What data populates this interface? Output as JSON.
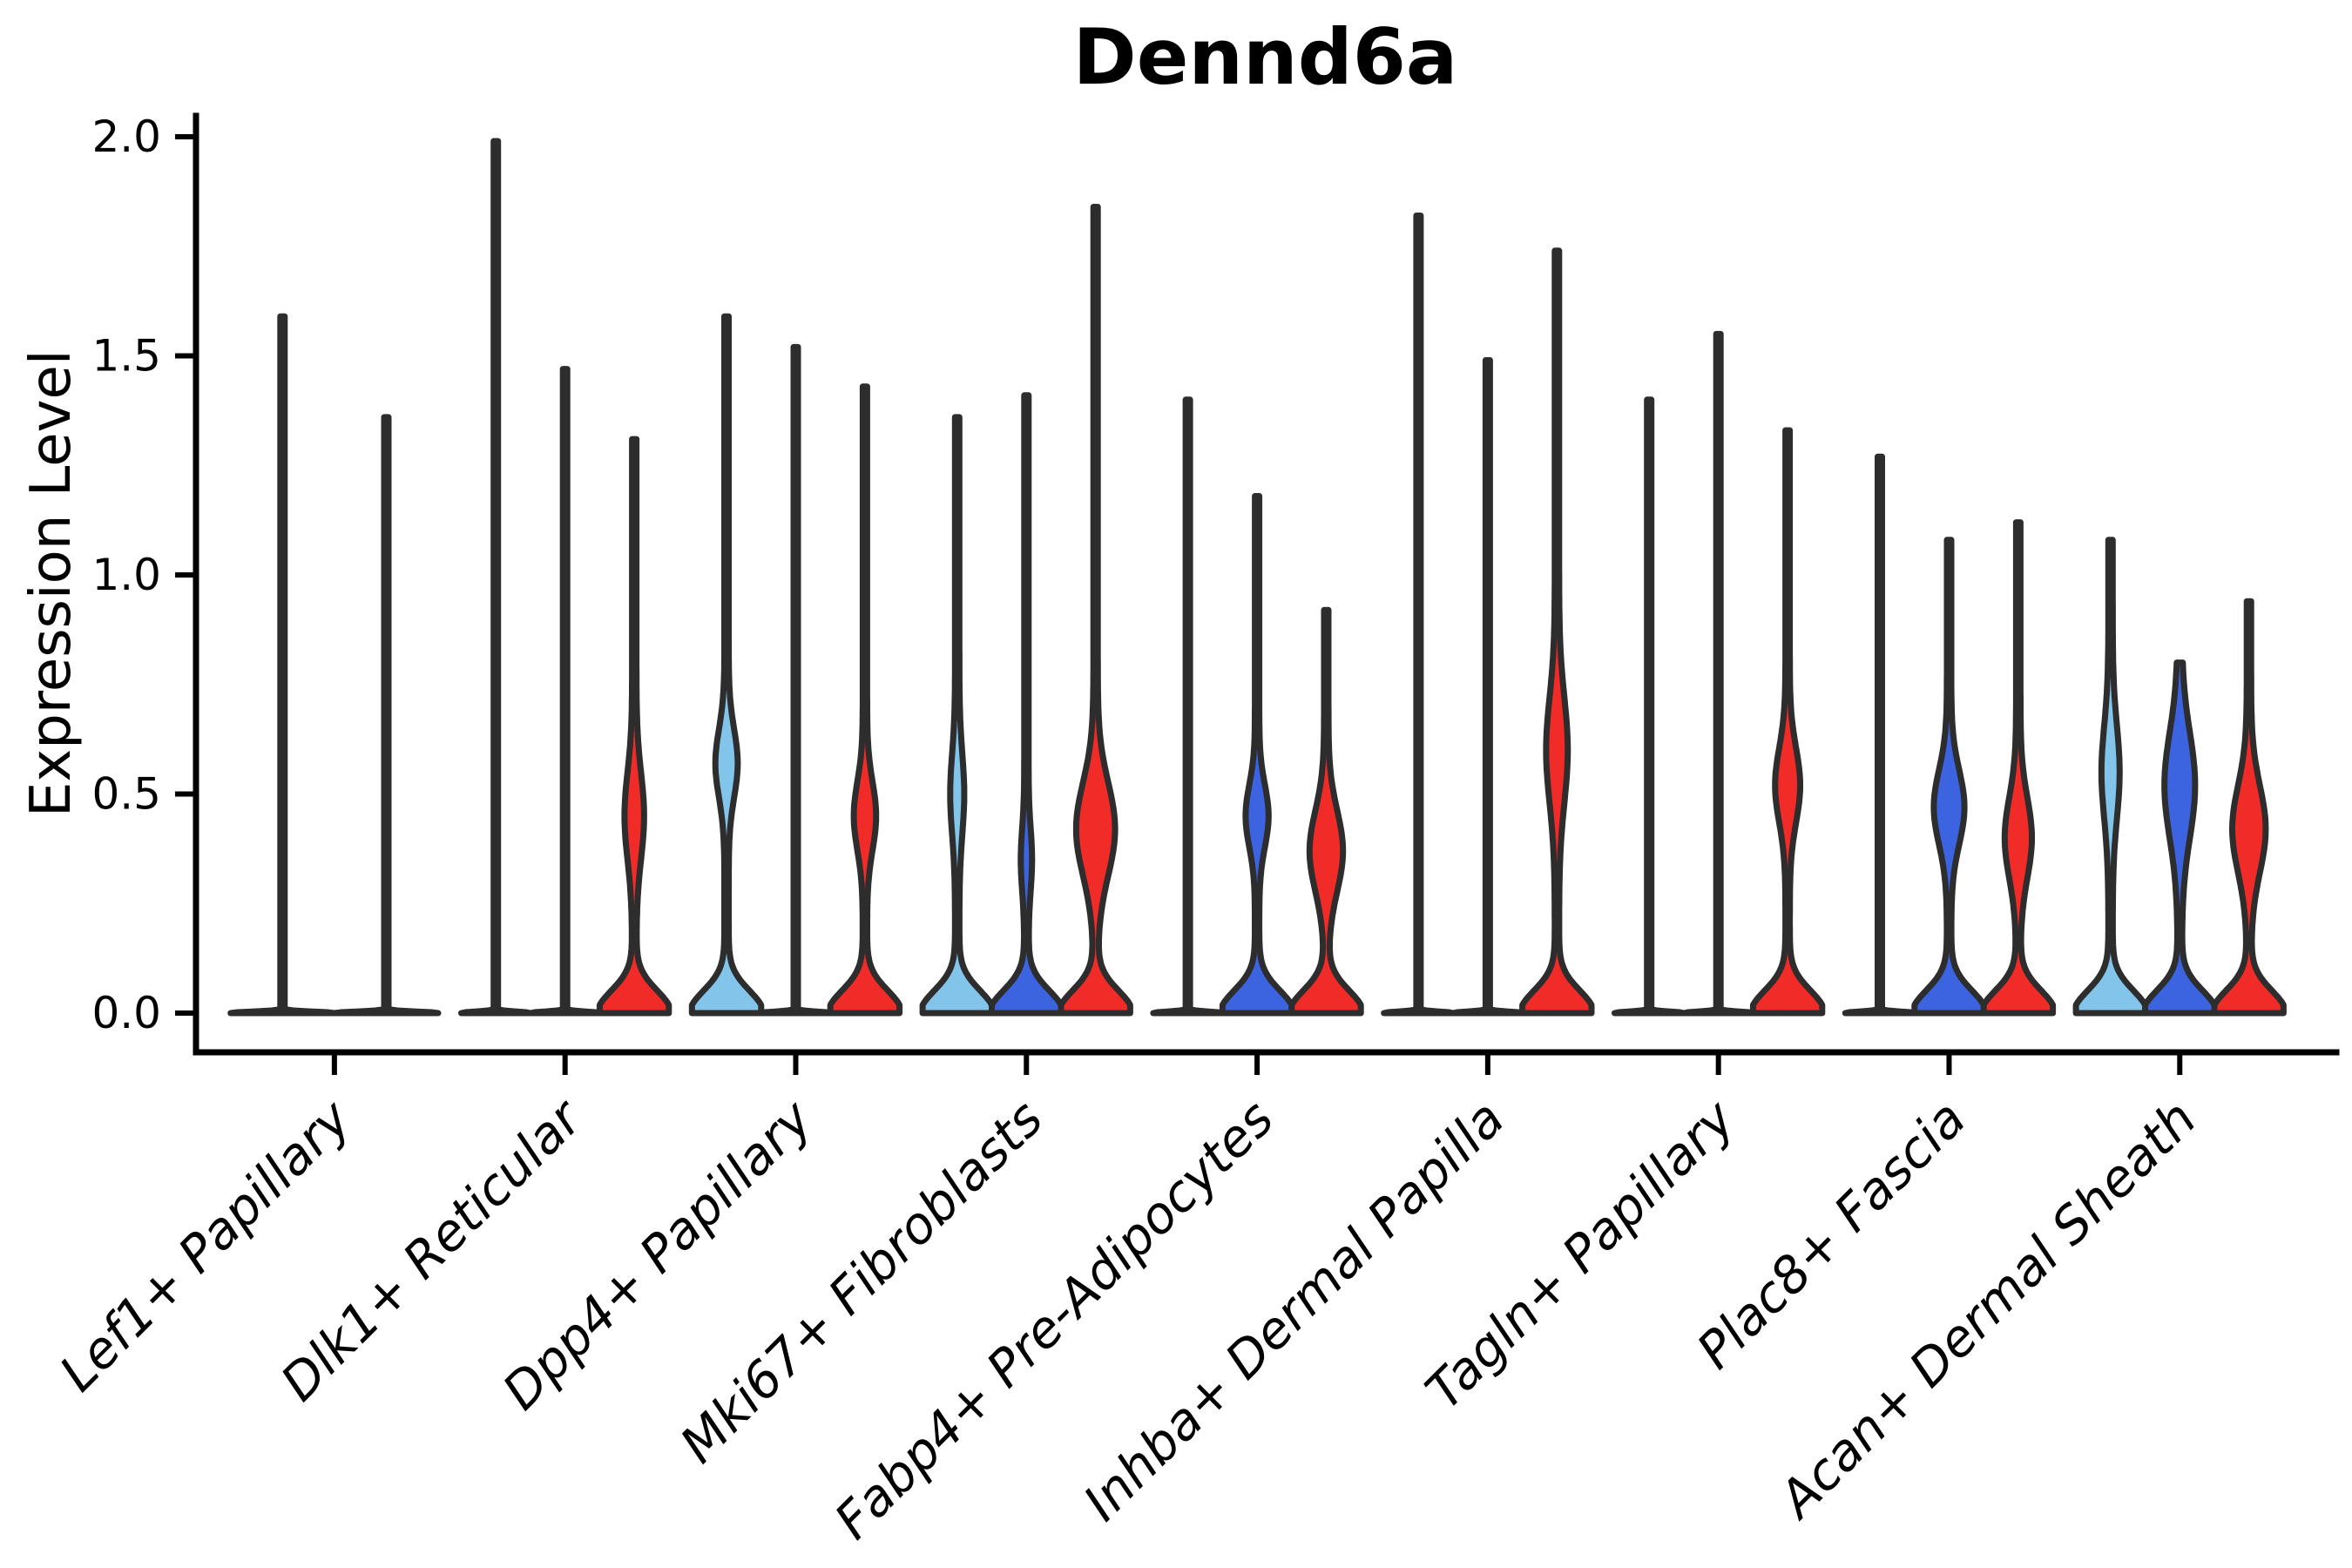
{
  "chart_data": {
    "type": "violin",
    "title": "Dennd6a",
    "ylabel": "Expression Level",
    "xlabel": "",
    "ylim": [
      0.0,
      2.0
    ],
    "yticks": [
      {
        "value": 0.0,
        "label": "0.0"
      },
      {
        "value": 0.5,
        "label": "0.5"
      },
      {
        "value": 1.0,
        "label": "1.0"
      },
      {
        "value": 1.5,
        "label": "1.5"
      },
      {
        "value": 2.0,
        "label": "2.0"
      }
    ],
    "x_tick_rotation": 45,
    "grid": false,
    "legend": false,
    "colors": {
      "skyblue": "#82C4EA",
      "blue": "#3C64E0",
      "red": "#F12B28"
    },
    "outline_color": "#2D2D2D",
    "axis_color": "#000000",
    "categories": [
      "Lef1+ Papillary",
      "Dlk1+ Reticular",
      "Dpp4+ Papillary",
      "Mki67+ Fibroblasts",
      "Fabp4+ Pre-Adipocytes",
      "Inhba+ Dermal Papilla",
      "Tagln+ Papillary",
      "Plac8+ Fascia",
      "Acan+ Dermal Sheath"
    ],
    "groups": [
      {
        "category": "Lef1+ Papillary",
        "violins": [
          {
            "color": "skyblue",
            "max": 1.59,
            "flat": true,
            "spindle": null
          },
          {
            "color": "blue",
            "max": 1.36,
            "flat": true,
            "spindle": null
          }
        ]
      },
      {
        "category": "Dlk1+ Reticular",
        "violins": [
          {
            "color": "skyblue",
            "max": 1.99,
            "flat": true,
            "spindle": null
          },
          {
            "color": "blue",
            "max": 1.47,
            "flat": true,
            "spindle": null
          },
          {
            "color": "red",
            "max": 1.31,
            "flat": false,
            "spindle": {
              "mu": 0.45,
              "sigma": 0.14,
              "w": 0.22
            }
          }
        ]
      },
      {
        "category": "Dpp4+ Papillary",
        "violins": [
          {
            "color": "skyblue",
            "max": 1.59,
            "flat": false,
            "spindle": {
              "mu": 0.57,
              "sigma": 0.11,
              "w": 0.26
            }
          },
          {
            "color": "blue",
            "max": 1.52,
            "flat": true,
            "spindle": null
          },
          {
            "color": "red",
            "max": 1.43,
            "flat": false,
            "spindle": {
              "mu": 0.45,
              "sigma": 0.11,
              "w": 0.26
            }
          }
        ]
      },
      {
        "category": "Mki67+ Fibroblasts",
        "violins": [
          {
            "color": "skyblue",
            "max": 1.36,
            "flat": false,
            "spindle": {
              "mu": 0.5,
              "sigma": 0.13,
              "w": 0.14
            }
          },
          {
            "color": "blue",
            "max": 1.41,
            "flat": false,
            "spindle": {
              "mu": 0.35,
              "sigma": 0.1,
              "w": 0.1
            }
          },
          {
            "color": "red",
            "max": 1.84,
            "flat": false,
            "spindle": {
              "mu": 0.42,
              "sigma": 0.15,
              "w": 0.5
            }
          }
        ]
      },
      {
        "category": "Fabp4+ Pre-Adipocytes",
        "violins": [
          {
            "color": "skyblue",
            "max": 1.4,
            "flat": true,
            "spindle": null
          },
          {
            "color": "blue",
            "max": 1.18,
            "flat": false,
            "spindle": {
              "mu": 0.45,
              "sigma": 0.1,
              "w": 0.27
            }
          },
          {
            "color": "red",
            "max": 0.92,
            "flat": false,
            "spindle": {
              "mu": 0.37,
              "sigma": 0.13,
              "w": 0.42
            }
          }
        ]
      },
      {
        "category": "Inhba+ Dermal Papilla",
        "violins": [
          {
            "color": "skyblue",
            "max": 1.82,
            "flat": true,
            "spindle": null
          },
          {
            "color": "blue",
            "max": 1.49,
            "flat": true,
            "spindle": null
          },
          {
            "color": "red",
            "max": 1.74,
            "flat": false,
            "spindle": {
              "mu": 0.6,
              "sigma": 0.17,
              "w": 0.25
            }
          }
        ]
      },
      {
        "category": "Tagln+ Papillary",
        "violins": [
          {
            "color": "skyblue",
            "max": 1.4,
            "flat": true,
            "spindle": null
          },
          {
            "color": "blue",
            "max": 1.55,
            "flat": true,
            "spindle": null
          },
          {
            "color": "red",
            "max": 1.33,
            "flat": false,
            "spindle": {
              "mu": 0.52,
              "sigma": 0.12,
              "w": 0.3
            }
          }
        ]
      },
      {
        "category": "Plac8+ Fascia",
        "violins": [
          {
            "color": "skyblue",
            "max": 1.27,
            "flat": true,
            "spindle": null
          },
          {
            "color": "blue",
            "max": 1.08,
            "flat": false,
            "spindle": {
              "mu": 0.47,
              "sigma": 0.12,
              "w": 0.38
            }
          },
          {
            "color": "red",
            "max": 1.12,
            "flat": false,
            "spindle": {
              "mu": 0.4,
              "sigma": 0.13,
              "w": 0.33
            }
          }
        ]
      },
      {
        "category": "Acan+ Dermal Sheath",
        "violins": [
          {
            "color": "skyblue",
            "max": 1.08,
            "flat": false,
            "spindle": {
              "mu": 0.55,
              "sigma": 0.15,
              "w": 0.2
            }
          },
          {
            "color": "blue",
            "max": 0.8,
            "flat": false,
            "spindle": {
              "mu": 0.52,
              "sigma": 0.17,
              "w": 0.38
            }
          },
          {
            "color": "red",
            "max": 0.94,
            "flat": false,
            "spindle": {
              "mu": 0.42,
              "sigma": 0.14,
              "w": 0.42
            }
          }
        ]
      }
    ]
  }
}
